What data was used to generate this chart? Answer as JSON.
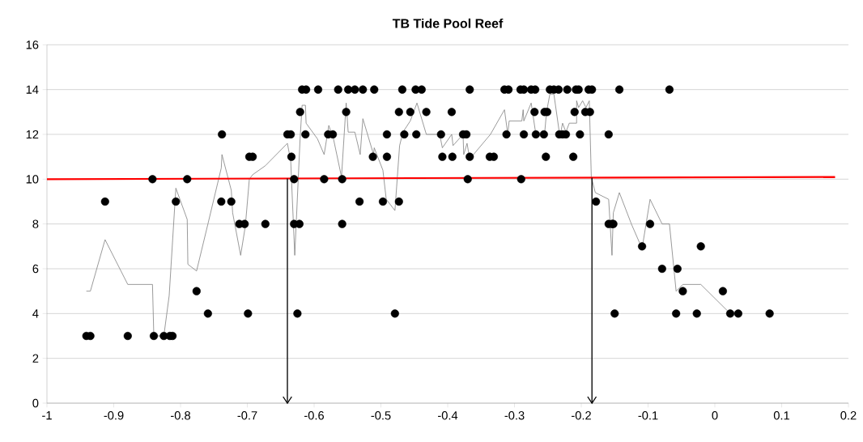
{
  "chart_data": {
    "type": "scatter",
    "title": "TB Tide Pool Reef",
    "xlim": [
      -1,
      0.2
    ],
    "xticks": [
      -1,
      -0.9,
      -0.8,
      -0.7,
      -0.6,
      -0.5,
      -0.4,
      -0.3,
      -0.2,
      -0.1,
      0,
      0.1,
      0.2
    ],
    "ylim": [
      0,
      16
    ],
    "yticks": [
      0,
      2,
      4,
      6,
      8,
      10,
      12,
      14,
      16
    ],
    "grid": "y",
    "series": [
      {
        "type": "scatter",
        "marker": "circle",
        "color": "#000000",
        "x": [
          -0.941,
          -0.935,
          -0.879,
          -0.84,
          -0.825,
          -0.816,
          -0.812,
          -0.913,
          -0.842,
          -0.79,
          -0.807,
          -0.776,
          -0.759,
          -0.738,
          -0.739,
          -0.724,
          -0.712,
          -0.704,
          -0.699,
          -0.697,
          -0.692,
          -0.673,
          -0.64,
          -0.635,
          -0.634,
          -0.63,
          -0.63,
          -0.622,
          -0.625,
          -0.621,
          -0.618,
          -0.612,
          -0.613,
          -0.594,
          -0.585,
          -0.579,
          -0.572,
          -0.564,
          -0.558,
          -0.558,
          -0.552,
          -0.549,
          -0.539,
          -0.532,
          -0.527,
          -0.512,
          -0.51,
          -0.497,
          -0.491,
          -0.491,
          -0.479,
          -0.473,
          -0.473,
          -0.468,
          -0.465,
          -0.456,
          -0.448,
          -0.447,
          -0.439,
          -0.432,
          -0.41,
          -0.408,
          -0.394,
          -0.393,
          -0.377,
          -0.372,
          -0.37,
          -0.367,
          -0.367,
          -0.337,
          -0.331,
          -0.315,
          -0.312,
          -0.309,
          -0.291,
          -0.29,
          -0.286,
          -0.286,
          -0.275,
          -0.27,
          -0.269,
          -0.268,
          -0.256,
          -0.255,
          -0.253,
          -0.251,
          -0.247,
          -0.241,
          -0.234,
          -0.233,
          -0.228,
          -0.223,
          -0.221,
          -0.212,
          -0.21,
          -0.208,
          -0.204,
          -0.202,
          -0.194,
          -0.189,
          -0.187,
          -0.184,
          -0.178,
          -0.159,
          -0.159,
          -0.154,
          -0.152,
          -0.15,
          -0.143,
          -0.109,
          -0.097,
          -0.079,
          -0.068,
          -0.058,
          -0.056,
          -0.048,
          -0.027,
          -0.021,
          0.012,
          0.023,
          0.035,
          0.082
        ],
        "values": [
          3,
          3,
          3,
          3,
          3,
          3,
          3,
          9,
          10,
          10,
          9,
          5,
          4,
          12,
          9,
          9,
          8,
          8,
          4,
          11,
          11,
          8,
          12,
          12,
          11,
          10,
          8,
          8,
          4,
          13,
          14,
          14,
          12,
          14,
          10,
          12,
          12,
          14,
          10,
          8,
          13,
          14,
          14,
          9,
          14,
          11,
          14,
          9,
          12,
          11,
          4,
          9,
          13,
          14,
          12,
          13,
          14,
          12,
          14,
          13,
          12,
          11,
          13,
          11,
          12,
          12,
          10,
          14,
          11,
          11,
          11,
          14,
          12,
          14,
          14,
          10,
          12,
          14,
          14,
          13,
          14,
          12,
          12,
          13,
          11,
          13,
          14,
          14,
          14,
          12,
          12,
          12,
          14,
          11,
          13,
          14,
          14,
          12,
          13,
          14,
          13,
          14,
          9,
          8,
          12,
          8,
          8,
          4,
          14,
          7,
          8,
          6,
          14,
          4,
          6,
          5,
          4,
          7,
          5,
          4,
          4,
          4
        ]
      },
      {
        "type": "line",
        "marker": "none",
        "color": "#808080",
        "x": [
          -0.941,
          -0.935,
          -0.913,
          -0.879,
          -0.842,
          -0.84,
          -0.825,
          -0.817,
          -0.807,
          -0.79,
          -0.789,
          -0.776,
          -0.759,
          -0.739,
          -0.738,
          -0.724,
          -0.722,
          -0.71,
          -0.703,
          -0.697,
          -0.692,
          -0.673,
          -0.64,
          -0.635,
          -0.629,
          -0.621,
          -0.618,
          -0.613,
          -0.612,
          -0.595,
          -0.585,
          -0.578,
          -0.571,
          -0.559,
          -0.552,
          -0.549,
          -0.539,
          -0.531,
          -0.527,
          -0.511,
          -0.51,
          -0.497,
          -0.492,
          -0.479,
          -0.472,
          -0.467,
          -0.456,
          -0.446,
          -0.432,
          -0.412,
          -0.408,
          -0.394,
          -0.392,
          -0.377,
          -0.376,
          -0.371,
          -0.367,
          -0.336,
          -0.315,
          -0.31,
          -0.308,
          -0.289,
          -0.287,
          -0.286,
          -0.275,
          -0.268,
          -0.255,
          -0.252,
          -0.247,
          -0.241,
          -0.232,
          -0.228,
          -0.223,
          -0.218,
          -0.207,
          -0.207,
          -0.204,
          -0.198,
          -0.193,
          -0.188,
          -0.185,
          -0.179,
          -0.159,
          -0.154,
          -0.152,
          -0.143,
          -0.125,
          -0.109,
          -0.097,
          -0.079,
          -0.068,
          -0.058,
          -0.048,
          -0.021,
          0.023
        ],
        "values": [
          5,
          5,
          7.3,
          5.3,
          5.3,
          3,
          3,
          4.8,
          9.6,
          8.2,
          6.2,
          5.9,
          8,
          10.5,
          11.1,
          9.5,
          8.5,
          6.6,
          7.9,
          10,
          10.2,
          10.6,
          11.6,
          10.8,
          6.6,
          11.8,
          13.3,
          13.3,
          12.5,
          11.8,
          11.1,
          12.4,
          11.8,
          10.1,
          13.4,
          12.1,
          12.1,
          11.1,
          12.7,
          11.1,
          11.4,
          10.4,
          9.1,
          8.6,
          11.5,
          12.1,
          12.6,
          13.4,
          12,
          12,
          11.4,
          12,
          11.5,
          12,
          11.1,
          11.6,
          10.9,
          12,
          13.1,
          12,
          12.6,
          12.6,
          13.1,
          12.6,
          13.4,
          12,
          12,
          13,
          13.8,
          13.8,
          11.9,
          12.5,
          12.1,
          12.5,
          12.5,
          13.5,
          13.2,
          13.5,
          13.2,
          13.5,
          10.1,
          9.4,
          9.1,
          6.6,
          8.5,
          9.4,
          8,
          6.9,
          9.1,
          8,
          8,
          5,
          5.3,
          5.3,
          4
        ]
      },
      {
        "type": "line",
        "marker": "none",
        "color": "#ff0000",
        "x": [
          -1,
          0.18
        ],
        "values": [
          10,
          10.1
        ]
      }
    ],
    "ref_lines": [
      {
        "axis": "x",
        "value": -0.64
      },
      {
        "axis": "x",
        "value": -0.184
      }
    ]
  }
}
